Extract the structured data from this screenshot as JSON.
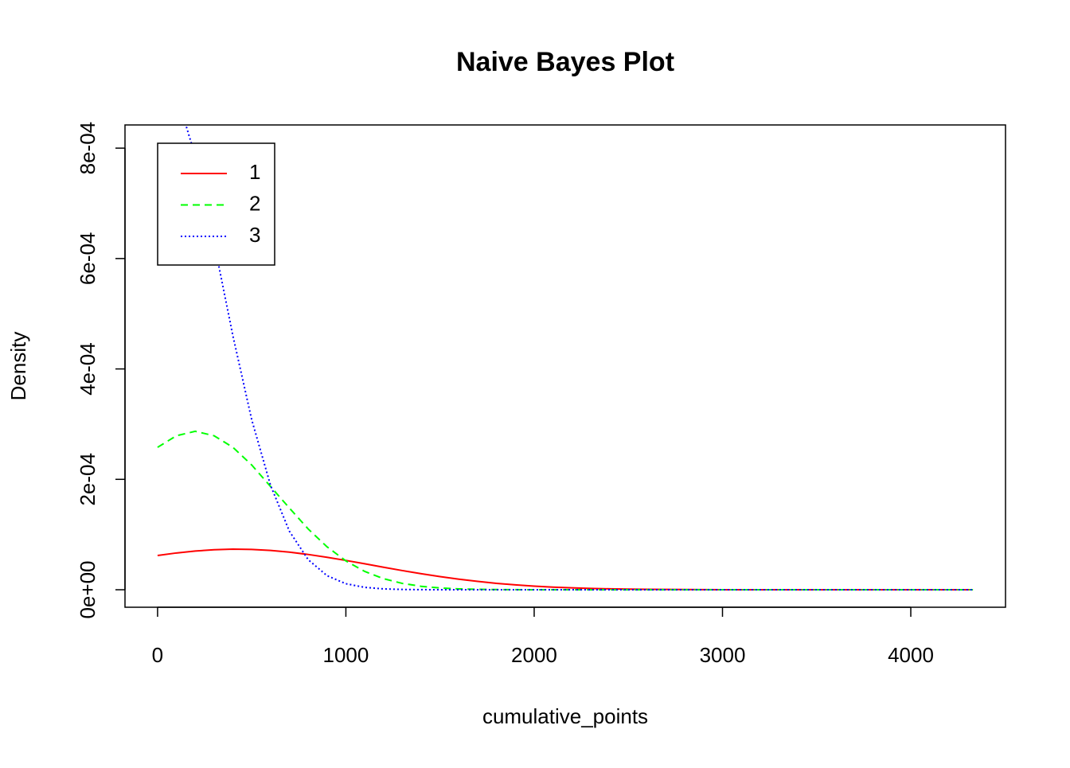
{
  "chart_data": {
    "type": "line",
    "title": "Naive Bayes Plot",
    "xlabel": "cumulative_points",
    "ylabel": "Density",
    "x": [
      0,
      100,
      200,
      300,
      400,
      500,
      600,
      700,
      800,
      900,
      1000,
      1100,
      1200,
      1300,
      1400,
      1500,
      1600,
      1700,
      1800,
      1900,
      2000,
      2100,
      2200,
      2300,
      2400,
      2500,
      2600,
      2700,
      2800,
      2900,
      3000,
      3100,
      3200,
      3300,
      3400,
      3500,
      3600,
      3700,
      3800,
      3900,
      4000,
      4100,
      4200,
      4300,
      4330
    ],
    "series": [
      {
        "name": "1",
        "color": "#ff0000",
        "linestyle": "solid",
        "values": [
          6.2e-05,
          6.66e-05,
          7.01e-05,
          7.25e-05,
          7.35e-05,
          7.3e-05,
          7.12e-05,
          6.81e-05,
          6.39e-05,
          5.88e-05,
          5.31e-05,
          4.7e-05,
          4.08e-05,
          3.47e-05,
          2.9e-05,
          2.38e-05,
          1.91e-05,
          1.51e-05,
          1.16e-05,
          8.82e-06,
          6.56e-06,
          4.79e-06,
          3.42e-06,
          2.4e-06,
          1.65e-06,
          1.12e-06,
          7.4e-07,
          4.8e-07,
          3e-07,
          1.9e-07,
          1.1e-07,
          6.7e-08,
          3.9e-08,
          2.2e-08,
          1.2e-08,
          6e-09,
          3e-09,
          2e-09,
          1e-09,
          0,
          0,
          0,
          0,
          0,
          0
        ]
      },
      {
        "name": "2",
        "color": "#00ff00",
        "linestyle": "dashed",
        "values": [
          0.000258,
          0.000279,
          0.000287,
          0.000279,
          0.000258,
          0.000226,
          0.000187,
          0.000148,
          0.00011,
          7.78e-05,
          5.22e-05,
          3.32e-05,
          2e-05,
          1.145e-05,
          6.21e-06,
          3.19e-06,
          1.55e-06,
          7.2e-07,
          3.1e-07,
          1.3e-07,
          5e-08,
          0,
          0,
          0,
          0,
          0,
          0,
          0,
          0,
          0,
          0,
          0,
          0,
          0,
          0,
          0,
          0,
          0,
          0,
          0,
          0,
          0,
          0,
          0,
          0
        ]
      },
      {
        "name": "3",
        "color": "#0000ff",
        "linestyle": "dotted",
        "values": [
          0.000939,
          0.000898,
          0.000786,
          0.000629,
          0.00046,
          0.000308,
          0.000189,
          0.000106,
          5.44e-05,
          2.55e-05,
          1.09e-05,
          4.28e-06,
          1.54e-06,
          5e-07,
          1.5e-07,
          4e-08,
          0,
          0,
          0,
          0,
          0,
          0,
          0,
          0,
          0,
          0,
          0,
          0,
          0,
          0,
          0,
          0,
          0,
          0,
          0,
          0,
          0,
          0,
          0,
          0,
          0,
          0,
          0,
          0,
          0
        ]
      }
    ],
    "xlim": [
      -173,
      4503
    ],
    "xticks": [
      0,
      1000,
      2000,
      3000,
      4000
    ],
    "ylim": [
      -3.17e-05,
      0.000842
    ],
    "yticks": [
      {
        "value": 0,
        "label": "0e+00"
      },
      {
        "value": 0.0002,
        "label": "2e-04"
      },
      {
        "value": 0.0004,
        "label": "4e-04"
      },
      {
        "value": 0.0006,
        "label": "6e-04"
      },
      {
        "value": 0.0008,
        "label": "8e-04"
      }
    ],
    "legend": "topleft",
    "grid": false
  }
}
